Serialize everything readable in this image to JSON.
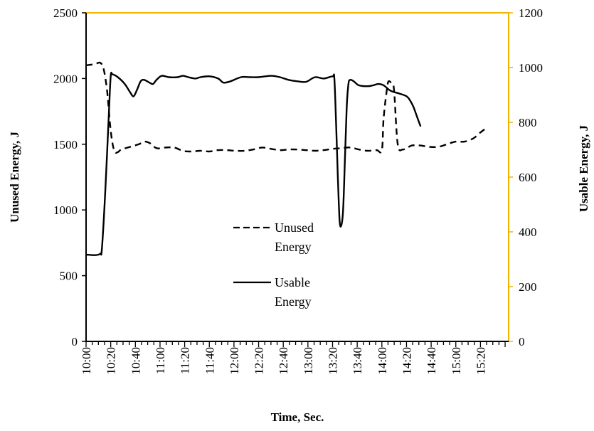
{
  "chart_data": {
    "type": "line",
    "xlabel": "Time, Sec.",
    "ylabel_left": "Unused Energy, J",
    "ylabel_right": "Usable Energy, J",
    "x_ticks": [
      "10:00",
      "10:20",
      "10:40",
      "11:00",
      "11:20",
      "11:40",
      "12:00",
      "12:20",
      "12:40",
      "13:00",
      "13:20",
      "13:40",
      "14:00",
      "14:20",
      "14:40",
      "15:00",
      "15:20"
    ],
    "y_left": {
      "range": [
        0,
        2500
      ],
      "ticks": [
        "0",
        "500",
        "1000",
        "1500",
        "2000",
        "2500"
      ]
    },
    "y_right": {
      "range": [
        0,
        1200
      ],
      "ticks": [
        "0",
        "200",
        "400",
        "600",
        "800",
        "1000",
        "1200"
      ]
    },
    "series": [
      {
        "name": "Unused Energy",
        "axis": "left",
        "style": "dashed",
        "points": [
          [
            0,
            2100
          ],
          [
            5,
            2110
          ],
          [
            8,
            2120
          ],
          [
            10,
            2070
          ],
          [
            12,
            1900
          ],
          [
            14,
            1600
          ],
          [
            16,
            1450
          ],
          [
            18,
            1440
          ],
          [
            20,
            1460
          ],
          [
            25,
            1480
          ],
          [
            30,
            1500
          ],
          [
            33,
            1520
          ],
          [
            36,
            1510
          ],
          [
            40,
            1470
          ],
          [
            45,
            1475
          ],
          [
            50,
            1475
          ],
          [
            55,
            1450
          ],
          [
            60,
            1445
          ],
          [
            65,
            1450
          ],
          [
            70,
            1445
          ],
          [
            75,
            1455
          ],
          [
            80,
            1455
          ],
          [
            85,
            1450
          ],
          [
            90,
            1450
          ],
          [
            95,
            1460
          ],
          [
            100,
            1475
          ],
          [
            105,
            1465
          ],
          [
            110,
            1455
          ],
          [
            115,
            1460
          ],
          [
            120,
            1460
          ],
          [
            125,
            1455
          ],
          [
            130,
            1450
          ],
          [
            135,
            1455
          ],
          [
            140,
            1465
          ],
          [
            145,
            1470
          ],
          [
            150,
            1475
          ],
          [
            155,
            1460
          ],
          [
            160,
            1450
          ],
          [
            165,
            1455
          ],
          [
            168,
            1455
          ],
          [
            169,
            1700
          ],
          [
            171,
            1930
          ],
          [
            172,
            1980
          ],
          [
            174,
            1950
          ],
          [
            175,
            1900
          ],
          [
            177,
            1500
          ],
          [
            180,
            1460
          ],
          [
            185,
            1490
          ],
          [
            190,
            1490
          ],
          [
            195,
            1480
          ],
          [
            200,
            1480
          ],
          [
            205,
            1500
          ],
          [
            210,
            1520
          ],
          [
            215,
            1520
          ],
          [
            220,
            1545
          ],
          [
            224,
            1590
          ],
          [
            227,
            1620
          ]
        ]
      },
      {
        "name": "Usable Energy",
        "axis": "right",
        "style": "solid",
        "points": [
          [
            0,
            317
          ],
          [
            5,
            315
          ],
          [
            8,
            320
          ],
          [
            9,
            340
          ],
          [
            11,
            560
          ],
          [
            13,
            840
          ],
          [
            14,
            970
          ],
          [
            15,
            975
          ],
          [
            18,
            965
          ],
          [
            22,
            940
          ],
          [
            25,
            910
          ],
          [
            27,
            895
          ],
          [
            29,
            920
          ],
          [
            31,
            950
          ],
          [
            33,
            955
          ],
          [
            36,
            945
          ],
          [
            38,
            940
          ],
          [
            40,
            955
          ],
          [
            43,
            970
          ],
          [
            47,
            965
          ],
          [
            52,
            965
          ],
          [
            55,
            970
          ],
          [
            58,
            965
          ],
          [
            62,
            960
          ],
          [
            65,
            965
          ],
          [
            70,
            968
          ],
          [
            75,
            960
          ],
          [
            78,
            945
          ],
          [
            82,
            950
          ],
          [
            88,
            965
          ],
          [
            93,
            965
          ],
          [
            98,
            965
          ],
          [
            105,
            970
          ],
          [
            110,
            965
          ],
          [
            115,
            955
          ],
          [
            120,
            950
          ],
          [
            125,
            948
          ],
          [
            130,
            965
          ],
          [
            135,
            960
          ],
          [
            140,
            968
          ],
          [
            141,
            960
          ],
          [
            142,
            800
          ],
          [
            143,
            600
          ],
          [
            144,
            440
          ],
          [
            145,
            425
          ],
          [
            146,
            480
          ],
          [
            147,
            660
          ],
          [
            148,
            850
          ],
          [
            149,
            940
          ],
          [
            150,
            955
          ],
          [
            152,
            950
          ],
          [
            155,
            935
          ],
          [
            160,
            932
          ],
          [
            163,
            935
          ],
          [
            166,
            940
          ],
          [
            169,
            935
          ],
          [
            173,
            915
          ],
          [
            178,
            905
          ],
          [
            182,
            895
          ],
          [
            184,
            880
          ],
          [
            186,
            855
          ],
          [
            188,
            820
          ],
          [
            190,
            785
          ]
        ]
      }
    ],
    "legend": [
      {
        "label_line1": "Unused",
        "label_line2": "Energy",
        "style": "dashed"
      },
      {
        "label_line1": "Usable",
        "label_line2": "Energy",
        "style": "solid"
      }
    ],
    "legend_position": "center",
    "grid": false,
    "colors": {
      "right_axis": "#f0b400",
      "line": "#000000"
    }
  }
}
